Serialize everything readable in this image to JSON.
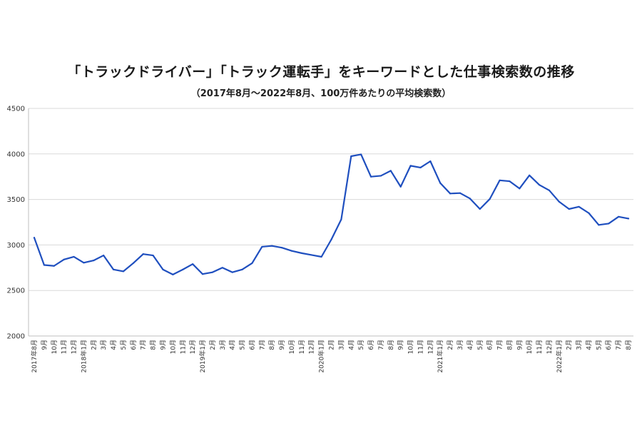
{
  "chart_data": {
    "type": "line",
    "title": "「トラックドライバー」「トラック運転手」をキーワードとした仕事検索数の推移",
    "subtitle": "（2017年8月～2022年8月、100万件あたりの平均検索数）",
    "xlabel": "",
    "ylabel": "",
    "ylim": [
      2000,
      4500
    ],
    "yticks": [
      "2000",
      "2500",
      "3000",
      "3500",
      "4000",
      "4500"
    ],
    "grid": true,
    "legend": "none",
    "line_color": "#1f4fbf",
    "grid_color": "#d9d9d9",
    "categories": [
      "2017年8月",
      "9月",
      "10月",
      "11月",
      "12月",
      "2018年1月",
      "2月",
      "3月",
      "4月",
      "5月",
      "6月",
      "7月",
      "8月",
      "9月",
      "10月",
      "11月",
      "12月",
      "2019年1月",
      "2月",
      "3月",
      "4月",
      "5月",
      "6月",
      "7月",
      "8月",
      "9月",
      "10月",
      "11月",
      "12月",
      "2020年1月",
      "2月",
      "3月",
      "4月",
      "5月",
      "6月",
      "7月",
      "8月",
      "9月",
      "10月",
      "11月",
      "12月",
      "2021年1月",
      "2月",
      "3月",
      "4月",
      "5月",
      "6月",
      "7月",
      "8月",
      "9月",
      "10月",
      "11月",
      "12月",
      "2022年1月",
      "2月",
      "3月",
      "4月",
      "5月",
      "6月",
      "7月",
      "8月"
    ],
    "series": [
      {
        "values": [
          3080,
          2780,
          2770,
          2840,
          2870,
          2805,
          2830,
          2885,
          2730,
          2710,
          2800,
          2900,
          2885,
          2730,
          2675,
          2730,
          2790,
          2680,
          2700,
          2750,
          2700,
          2730,
          2800,
          2980,
          2990,
          2970,
          2935,
          2910,
          2890,
          2870,
          3060,
          3280,
          3975,
          3995,
          3750,
          3760,
          3815,
          3640,
          3870,
          3850,
          3920,
          3680,
          3565,
          3570,
          3510,
          3395,
          3505,
          3710,
          3700,
          3620,
          3765,
          3660,
          3600,
          3475,
          3395,
          3420,
          3350,
          3220,
          3235,
          3310,
          3290
        ]
      }
    ]
  }
}
